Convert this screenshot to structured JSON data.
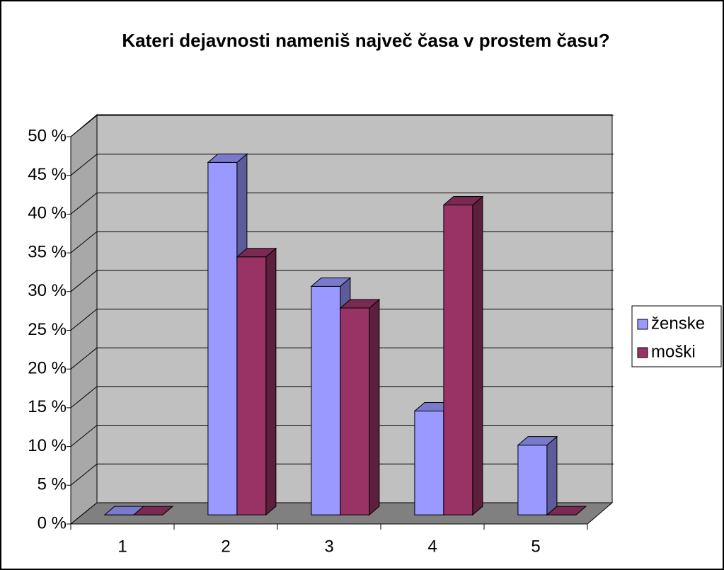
{
  "chart_data": {
    "type": "bar3d",
    "title": "Kateri dejavnosti nameniš največ časa v prostem času?",
    "categories": [
      "1",
      "2",
      "3",
      "4",
      "5"
    ],
    "series": [
      {
        "name": "ženske",
        "color": "#9999ff",
        "values": [
          0,
          45.5,
          29.5,
          13.4,
          9
        ]
      },
      {
        "name": "moški",
        "color": "#993366",
        "values": [
          0,
          33.3,
          26.7,
          40,
          0
        ]
      }
    ],
    "ylim": [
      0,
      50
    ],
    "yticks": [
      {
        "value": 0,
        "label": "0 %"
      },
      {
        "value": 5,
        "label": "5 %"
      },
      {
        "value": 10,
        "label": "10 %"
      },
      {
        "value": 15,
        "label": "15 %"
      },
      {
        "value": 20,
        "label": "20 %"
      },
      {
        "value": 25,
        "label": "25 %"
      },
      {
        "value": 30,
        "label": "30 %"
      },
      {
        "value": 35,
        "label": "35 %"
      },
      {
        "value": 40,
        "label": "40 %"
      },
      {
        "value": 45,
        "label": "45 %"
      },
      {
        "value": 50,
        "label": "50 %"
      }
    ],
    "grid": true,
    "legend": "right"
  }
}
